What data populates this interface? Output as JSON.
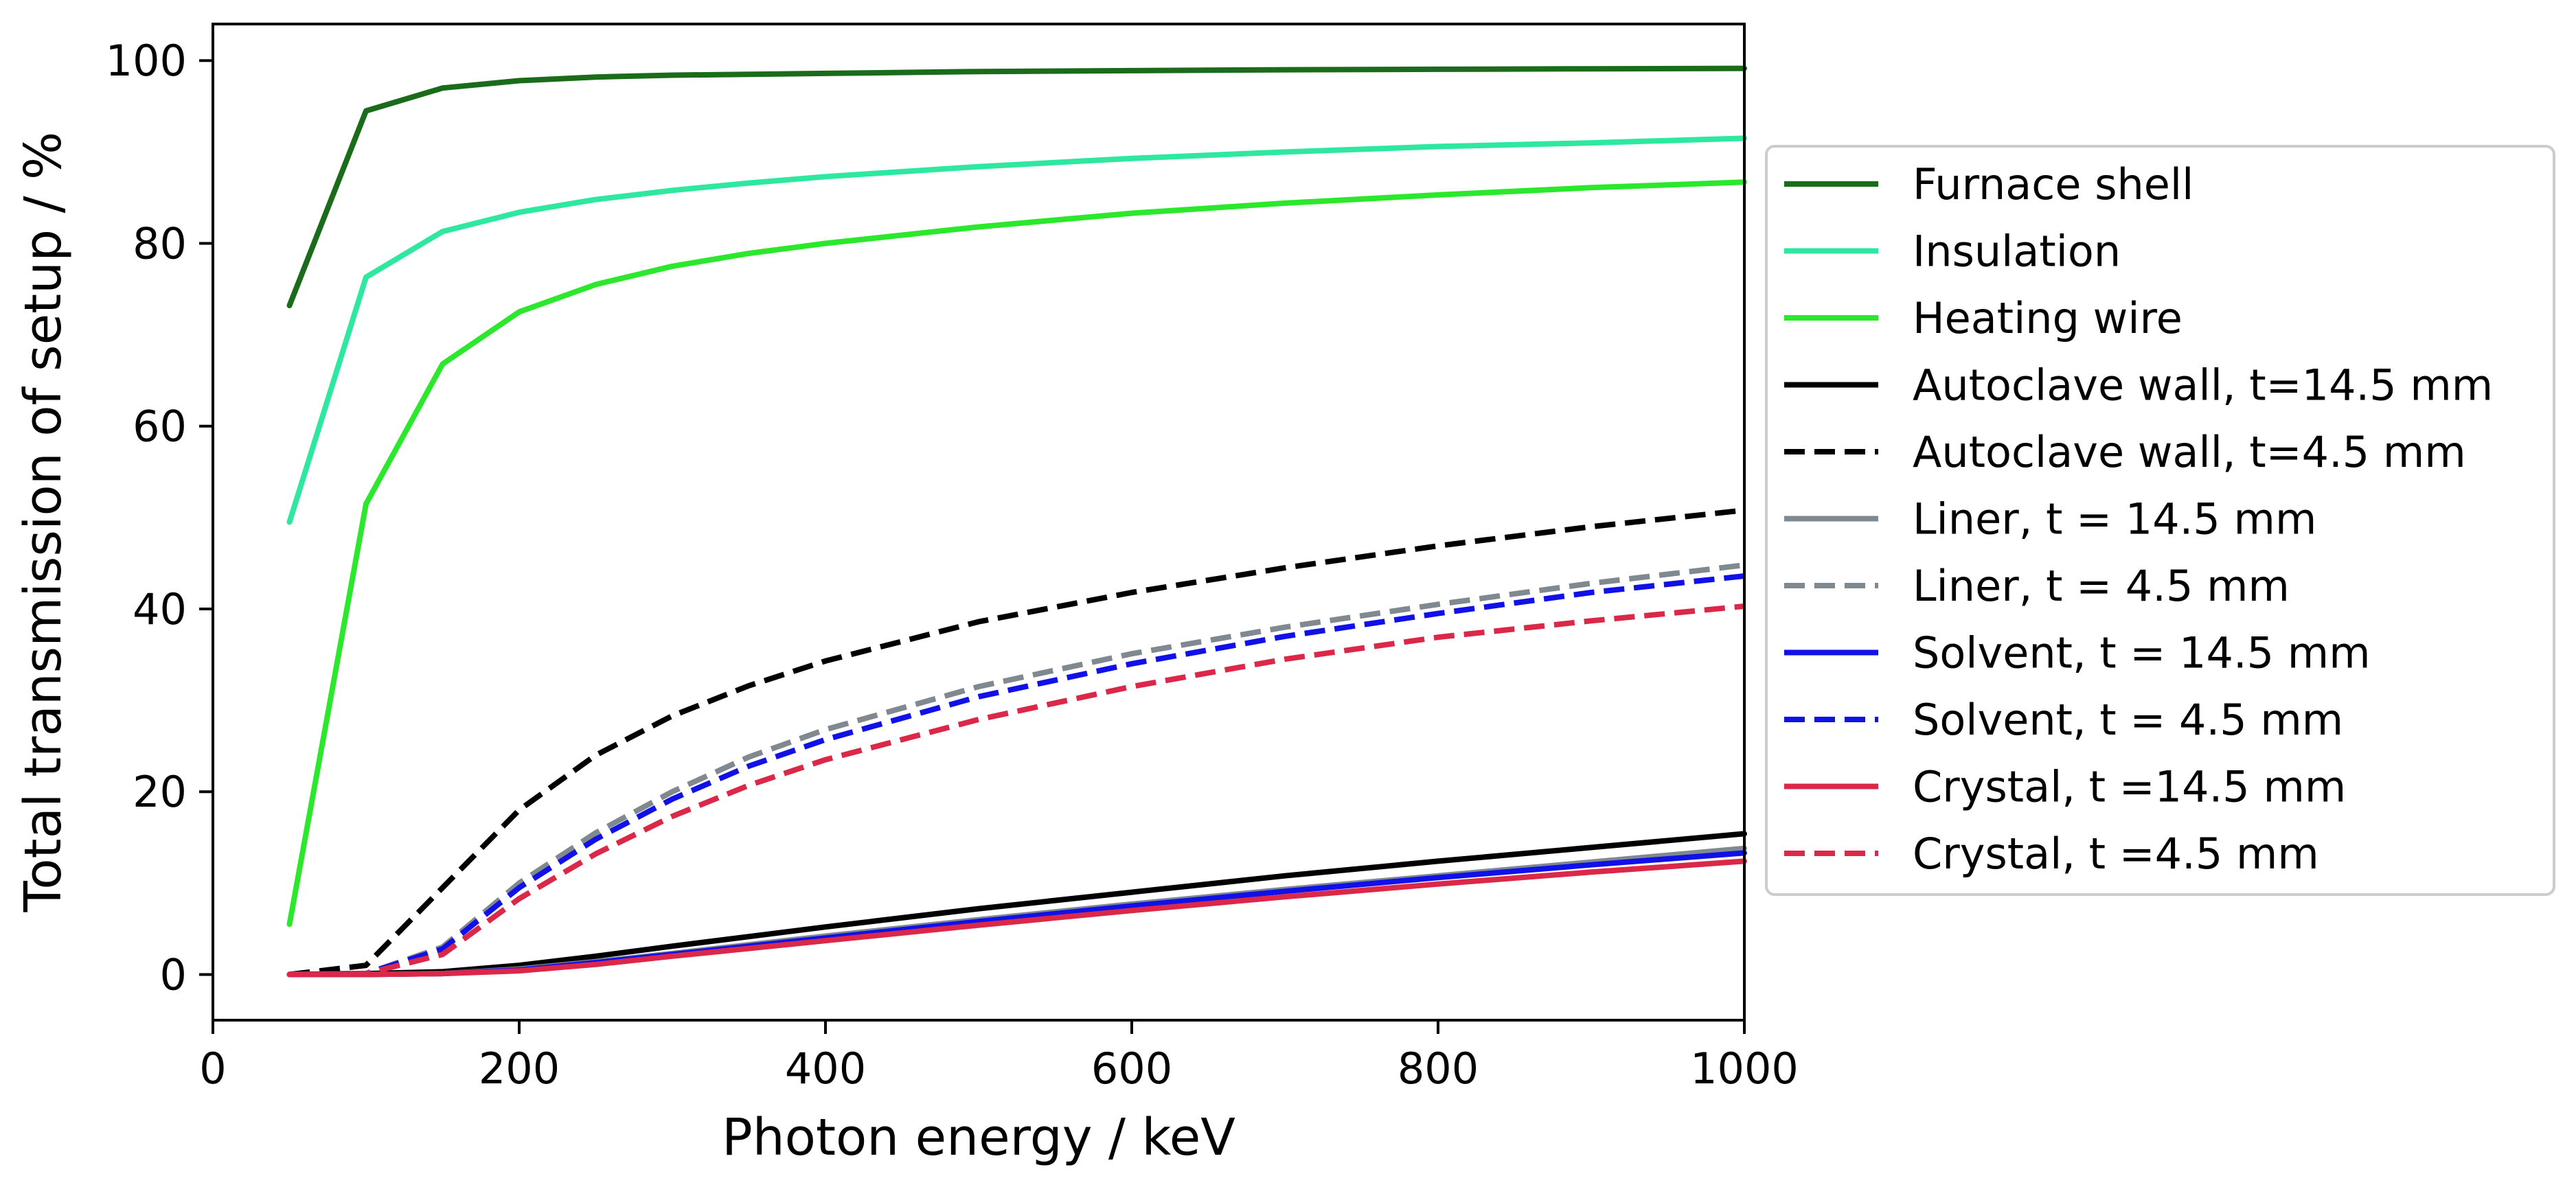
{
  "chart_data": {
    "type": "line",
    "title": "",
    "xlabel": "Photon energy / keV",
    "ylabel": "Total transmission of setup / %",
    "xlim": [
      0,
      1000
    ],
    "ylim": [
      -5,
      104
    ],
    "xticks": [
      0,
      200,
      400,
      600,
      800,
      1000
    ],
    "yticks": [
      0,
      20,
      40,
      60,
      80,
      100
    ],
    "grid": false,
    "legend_position": "right-outside",
    "series": [
      {
        "name": "Furnace shell",
        "color": "#1a6b1a",
        "dashed": false,
        "x": [
          50,
          100,
          150,
          200,
          250,
          300,
          400,
          500,
          600,
          700,
          800,
          900,
          1000
        ],
        "y": [
          73.2,
          94.5,
          97.0,
          97.8,
          98.2,
          98.4,
          98.6,
          98.8,
          98.9,
          99.0,
          99.05,
          99.1,
          99.15
        ]
      },
      {
        "name": "Insulation",
        "color": "#2ee8a0",
        "dashed": false,
        "x": [
          50,
          100,
          150,
          200,
          250,
          300,
          350,
          400,
          500,
          600,
          700,
          800,
          900,
          1000
        ],
        "y": [
          49.5,
          76.3,
          81.3,
          83.4,
          84.8,
          85.8,
          86.6,
          87.3,
          88.4,
          89.3,
          90.0,
          90.6,
          91.0,
          91.5
        ]
      },
      {
        "name": "Heating wire",
        "color": "#2ce82c",
        "dashed": false,
        "x": [
          50,
          100,
          150,
          200,
          250,
          300,
          350,
          400,
          500,
          600,
          700,
          800,
          900,
          1000
        ],
        "y": [
          5.5,
          51.5,
          66.8,
          72.5,
          75.5,
          77.5,
          78.9,
          80.0,
          81.8,
          83.3,
          84.4,
          85.3,
          86.1,
          86.7
        ]
      },
      {
        "name": "Autoclave wall, t=14.5 mm",
        "color": "#000000",
        "dashed": false,
        "x": [
          50,
          100,
          150,
          200,
          250,
          300,
          400,
          500,
          600,
          700,
          800,
          900,
          1000
        ],
        "y": [
          0,
          0.1,
          0.3,
          1.0,
          2.0,
          3.1,
          5.2,
          7.2,
          9.0,
          10.8,
          12.4,
          13.9,
          15.4
        ]
      },
      {
        "name": "Autoclave wall, t=4.5 mm",
        "color": "#000000",
        "dashed": true,
        "x": [
          50,
          100,
          150,
          200,
          250,
          300,
          350,
          400,
          500,
          600,
          700,
          800,
          900,
          1000
        ],
        "y": [
          0,
          1.0,
          9.5,
          18.0,
          24.0,
          28.3,
          31.6,
          34.3,
          38.6,
          41.8,
          44.5,
          46.9,
          49.0,
          50.8
        ]
      },
      {
        "name": "Liner, t = 14.5 mm",
        "color": "#808890",
        "dashed": false,
        "x": [
          50,
          100,
          150,
          200,
          250,
          300,
          400,
          500,
          600,
          700,
          800,
          900,
          1000
        ],
        "y": [
          0,
          0,
          0.1,
          0.6,
          1.4,
          2.3,
          4.2,
          6.0,
          7.7,
          9.3,
          10.8,
          12.3,
          13.8
        ]
      },
      {
        "name": "Liner, t = 4.5 mm",
        "color": "#808890",
        "dashed": true,
        "x": [
          50,
          100,
          150,
          200,
          250,
          300,
          350,
          400,
          500,
          600,
          700,
          800,
          900,
          1000
        ],
        "y": [
          0,
          0.1,
          3.0,
          10.0,
          15.5,
          20.0,
          23.8,
          26.8,
          31.5,
          35.1,
          38.0,
          40.5,
          42.8,
          44.8
        ]
      },
      {
        "name": "Solvent, t = 14.5 mm",
        "color": "#1010e8",
        "dashed": false,
        "x": [
          50,
          100,
          150,
          200,
          250,
          300,
          400,
          500,
          600,
          700,
          800,
          900,
          1000
        ],
        "y": [
          0,
          0,
          0.1,
          0.5,
          1.3,
          2.2,
          4.0,
          5.8,
          7.5,
          9.1,
          10.6,
          12.0,
          13.3
        ]
      },
      {
        "name": "Solvent, t = 4.5 mm",
        "color": "#1010e8",
        "dashed": true,
        "x": [
          50,
          100,
          150,
          200,
          250,
          300,
          350,
          400,
          500,
          600,
          700,
          800,
          900,
          1000
        ],
        "y": [
          0,
          0.1,
          2.8,
          9.5,
          14.8,
          19.2,
          22.8,
          25.7,
          30.4,
          34.0,
          37.0,
          39.5,
          41.8,
          43.6
        ]
      },
      {
        "name": "Crystal, t =14.5 mm",
        "color": "#dc2848",
        "dashed": false,
        "x": [
          50,
          100,
          150,
          200,
          250,
          300,
          400,
          500,
          600,
          700,
          800,
          900,
          1000
        ],
        "y": [
          0,
          0,
          0.1,
          0.4,
          1.1,
          2.0,
          3.7,
          5.4,
          7.0,
          8.5,
          9.9,
          11.2,
          12.4
        ]
      },
      {
        "name": "Crystal, t =4.5 mm",
        "color": "#dc2848",
        "dashed": true,
        "x": [
          50,
          100,
          150,
          200,
          250,
          300,
          350,
          400,
          500,
          600,
          700,
          800,
          900,
          1000
        ],
        "y": [
          0,
          0.1,
          2.2,
          8.3,
          13.2,
          17.3,
          20.7,
          23.5,
          27.9,
          31.5,
          34.5,
          36.9,
          38.7,
          40.3
        ]
      }
    ]
  }
}
